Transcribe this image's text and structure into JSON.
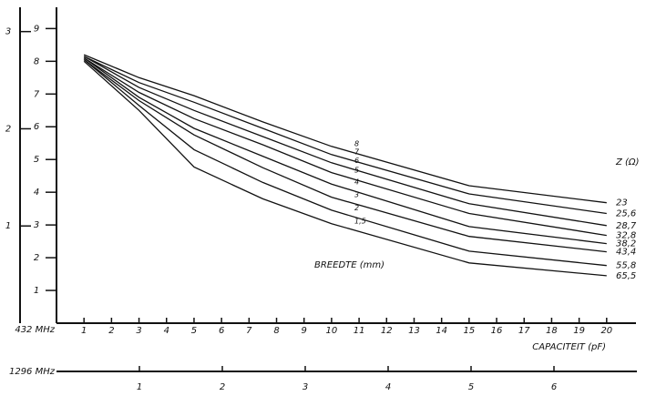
{
  "chart_data": {
    "type": "line",
    "x_label": "CAPACITEIT (pF)",
    "x_axis_name": "432 MHz",
    "x2_axis_name": "1296 MHz",
    "series_label": "BREEDTE (mm)",
    "z_header": "Z (Ω)",
    "x": [
      1,
      3,
      5,
      7.5,
      10,
      15,
      20
    ],
    "xlim": [
      0,
      21
    ],
    "xticks": [
      1,
      2,
      3,
      4,
      5,
      6,
      7,
      8,
      9,
      10,
      11,
      12,
      13,
      14,
      15,
      16,
      17,
      18,
      19,
      20
    ],
    "x2lim": [
      0,
      7
    ],
    "x2ticks": [
      1,
      2,
      3,
      4,
      5,
      6
    ],
    "ylim": [
      0,
      9.65
    ],
    "yticks": [
      1,
      2,
      3,
      4,
      5,
      6,
      7,
      8,
      9
    ],
    "y2lim": [
      0,
      3.25
    ],
    "y2ticks": [
      1,
      2,
      3
    ],
    "color": "#111111",
    "series": [
      {
        "name": "8",
        "z": "23",
        "values": [
          8.2,
          7.5,
          6.95,
          6.15,
          5.4,
          4.2,
          3.68
        ]
      },
      {
        "name": "7",
        "z": "25,6",
        "values": [
          8.15,
          7.35,
          6.75,
          5.95,
          5.15,
          3.95,
          3.35
        ]
      },
      {
        "name": "6",
        "z": "28,7",
        "values": [
          8.15,
          7.2,
          6.5,
          5.7,
          4.9,
          3.65,
          2.98
        ]
      },
      {
        "name": "5",
        "z": "32,8",
        "values": [
          8.1,
          7.05,
          6.25,
          5.45,
          4.6,
          3.35,
          2.68
        ]
      },
      {
        "name": "4",
        "z": "38,2",
        "values": [
          8.1,
          6.9,
          5.95,
          5.1,
          4.25,
          2.95,
          2.43
        ]
      },
      {
        "name": "3",
        "z": "43,4",
        "values": [
          8.05,
          6.8,
          5.75,
          4.75,
          3.85,
          2.65,
          2.18
        ]
      },
      {
        "name": "2",
        "z": "55,8",
        "values": [
          8.05,
          6.65,
          5.3,
          4.3,
          3.45,
          2.2,
          1.76
        ]
      },
      {
        "name": "1,5",
        "z": "65,5",
        "values": [
          8.0,
          6.5,
          4.77,
          3.8,
          3.04,
          1.84,
          1.45
        ]
      }
    ]
  }
}
